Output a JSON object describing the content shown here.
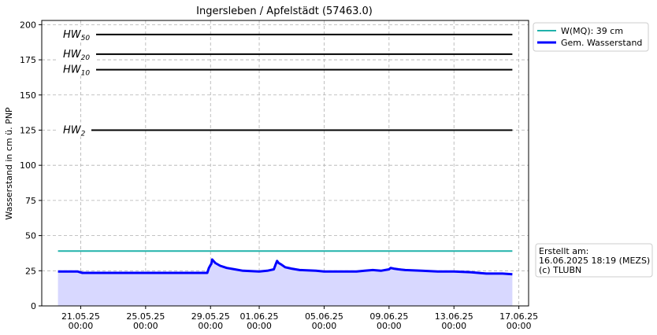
{
  "chart_data": {
    "type": "line",
    "title": "Ingersleben / Apfelstädt (57463.0)",
    "xlabel": "",
    "ylabel": "Wasserstand in cm ü. PNP",
    "x_range_days": [
      -2.4,
      27.6
    ],
    "x_ticks": [
      {
        "day": 0,
        "date": "21.05.25",
        "time": "00:00"
      },
      {
        "day": 4,
        "date": "25.05.25",
        "time": "00:00"
      },
      {
        "day": 8,
        "date": "29.05.25",
        "time": "00:00"
      },
      {
        "day": 11,
        "date": "01.06.25",
        "time": "00:00"
      },
      {
        "day": 15,
        "date": "05.06.25",
        "time": "00:00"
      },
      {
        "day": 19,
        "date": "09.06.25",
        "time": "00:00"
      },
      {
        "day": 23,
        "date": "13.06.25",
        "time": "00:00"
      },
      {
        "day": 27,
        "date": "17.06.25",
        "time": "00:00"
      }
    ],
    "ylim": [
      0,
      203
    ],
    "y_ticks": [
      0,
      25,
      50,
      75,
      100,
      125,
      150,
      175,
      200
    ],
    "grid": true,
    "legend_position": "outside-top-right",
    "thresholds": [
      {
        "base": "HW",
        "sub": "50",
        "value": 193
      },
      {
        "base": "HW",
        "sub": "20",
        "value": 179
      },
      {
        "base": "HW",
        "sub": "10",
        "value": 168
      },
      {
        "base": "HW",
        "sub": "2",
        "value": 125
      }
    ],
    "series": [
      {
        "name": "W(MQ): 39 cm",
        "color": "#20b2aa",
        "x": [
          -1.4,
          26.6
        ],
        "y": [
          39,
          39
        ]
      },
      {
        "name": "Gem. Wasserstand",
        "color": "#0000ff",
        "fill": "#d8d8ff",
        "x": [
          -1.4,
          -0.2,
          0.1,
          2.0,
          4.0,
          6.0,
          7.5,
          7.8,
          7.9,
          8.0,
          8.05,
          8.1,
          8.3,
          8.6,
          9.0,
          9.5,
          10.0,
          11.0,
          11.5,
          11.9,
          12.0,
          12.1,
          12.2,
          12.35,
          12.6,
          13.0,
          13.5,
          14.5,
          15.0,
          16.0,
          17.0,
          17.5,
          18.0,
          18.5,
          19.0,
          19.1,
          19.3,
          19.6,
          20.0,
          21.0,
          22.0,
          23.0,
          24.0,
          24.5,
          25.0,
          26.0,
          26.6
        ],
        "y": [
          24.5,
          24.5,
          23.5,
          23.5,
          23.5,
          23.5,
          23.5,
          23.5,
          27,
          29,
          30,
          33,
          30.5,
          28.5,
          27,
          26,
          25,
          24.5,
          25,
          26,
          29,
          32,
          30.5,
          29.5,
          27.5,
          26.5,
          25.5,
          25,
          24.5,
          24.5,
          24.5,
          25,
          25.5,
          25,
          26,
          27,
          26.5,
          26,
          25.5,
          25,
          24.5,
          24.5,
          24,
          23.5,
          23,
          23,
          22.5
        ]
      }
    ],
    "info": {
      "label": "Erstellt am:",
      "timestamp": "16.06.2025 18:19 (MEZS)",
      "copyright": "(c) TLUBN"
    }
  }
}
